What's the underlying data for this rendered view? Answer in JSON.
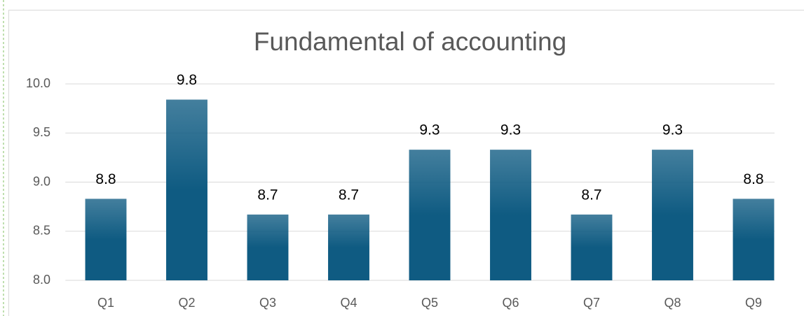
{
  "chart_data": {
    "type": "bar",
    "title": "Fundamental of accounting",
    "categories": [
      "Q1",
      "Q2",
      "Q3",
      "Q4",
      "Q5",
      "Q6",
      "Q7",
      "Q8",
      "Q9"
    ],
    "values": [
      8.83,
      9.84,
      8.67,
      8.67,
      9.33,
      9.33,
      8.67,
      9.33,
      8.83
    ],
    "value_labels": [
      "8.8",
      "9.8",
      "8.7",
      "8.7",
      "9.3",
      "9.3",
      "8.7",
      "9.3",
      "8.8"
    ],
    "color": "#0f5b82",
    "ylim": [
      8,
      10
    ],
    "yticks": [
      {
        "value": 8,
        "label": "8.0"
      },
      8.5,
      {
        "value": 9,
        "label": "9.0"
      },
      9.5,
      {
        "value": 10,
        "label": "10.0"
      }
    ],
    "grid": true
  }
}
